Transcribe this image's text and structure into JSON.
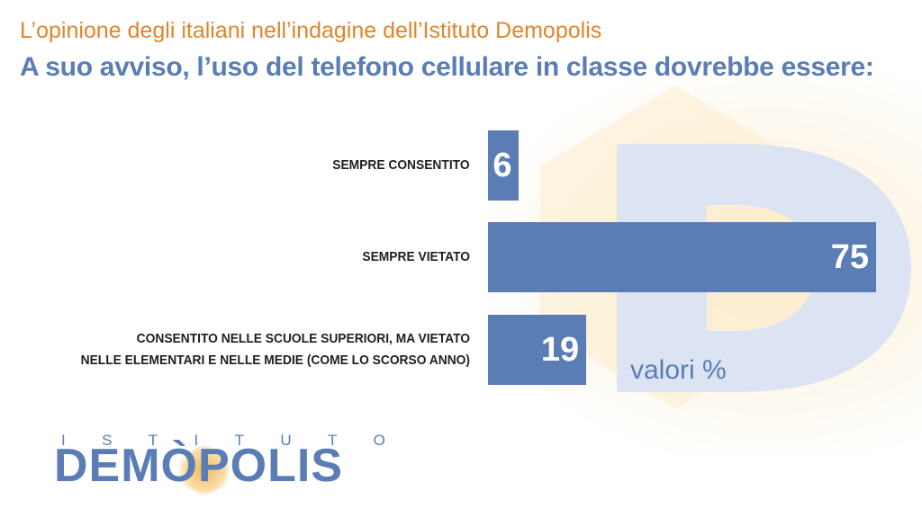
{
  "header": {
    "subtitle": "L’opinione degli italiani nell’indagine dell’Istituto Demopolis",
    "title": "A suo avviso, l’uso del telefono cellulare in classe dovrebbe essere:"
  },
  "chart_data": {
    "type": "bar",
    "orientation": "horizontal",
    "categories": [
      [
        "SEMPRE CONSENTITO"
      ],
      [
        "SEMPRE VIETATO"
      ],
      [
        "CONSENTITO NELLE SCUOLE SUPERIORI, MA VIETATO",
        "NELLE ELEMENTARI E NELLE MEDIE (COME LO SCORSO ANNO)"
      ]
    ],
    "values": [
      6,
      75,
      19
    ],
    "value_labels": [
      "6",
      "75",
      "19"
    ],
    "unit_label": "valori %",
    "xlim": [
      0,
      75
    ],
    "grid": false,
    "bar_color": "#5B7DB5"
  },
  "logo": {
    "top_letters": [
      "I",
      "S",
      "T",
      "I",
      "T",
      "U",
      "T",
      "O"
    ],
    "main": "DEMÒPOLIS"
  },
  "colors": {
    "accent_orange": "#E0852B",
    "accent_blue": "#5B7DB5"
  }
}
